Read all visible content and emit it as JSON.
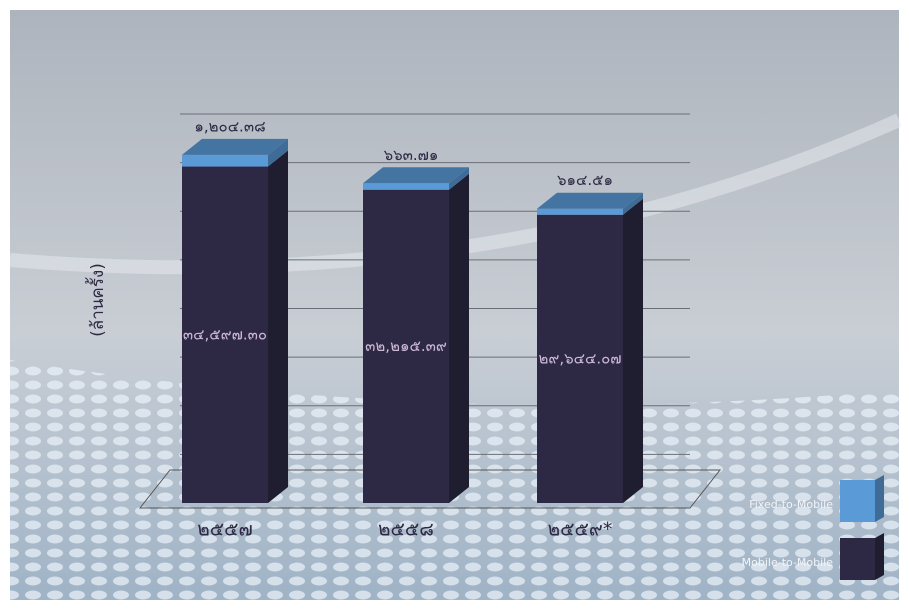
{
  "chart_data": {
    "type": "bar",
    "stacked": true,
    "y_label": "(ล้านครั้ง)",
    "categories": [
      "๒๕๕๗",
      "๒๕๕๘",
      "๒๕๕๙*"
    ],
    "series": [
      {
        "name": "Mobile-to-Mobile",
        "color": "#2d2944",
        "values": [
          34597.3,
          32215.39,
          29644.07
        ],
        "value_labels": [
          "๓๔,๕๙๗.๓๐",
          "๓๒,๒๑๕.๓๙",
          "๒๙,๖๔๔.๐๗"
        ]
      },
      {
        "name": "Fixed-to-Mobile",
        "color": "#5a9ad6",
        "values": [
          1204.38,
          663.71,
          614.51
        ],
        "value_labels": [
          "๑,๒๐๔.๓๘",
          "๖๖๓.๗๑",
          "๖๑๔.๕๑"
        ]
      }
    ],
    "ylim": [
      0,
      40000
    ],
    "yticks": [
      5000,
      10000,
      15000,
      20000,
      25000,
      30000,
      35000,
      40000
    ],
    "grid": true
  }
}
